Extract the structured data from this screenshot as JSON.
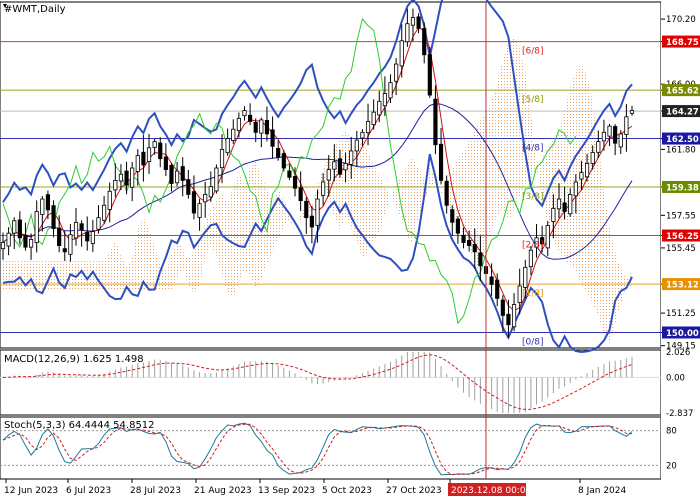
{
  "symbol_title": "#WMT,Daily",
  "chart_data": [
    {
      "type": "candlestick",
      "title": "#WMT,Daily",
      "ylim": [
        149.0,
        171.3
      ],
      "ticks": [
        "170.20",
        "168.75",
        "166.00",
        "165.62",
        "164.27",
        "162.50",
        "161.80",
        "159.38",
        "157.55",
        "156.25",
        "155.45",
        "153.12",
        "151.25",
        "150.00",
        "149.15"
      ],
      "price_labels": [
        {
          "label": "168.75",
          "value": 168.75,
          "color": "#e00000",
          "line": "#c84040"
        },
        {
          "label": "165.62",
          "value": 165.62,
          "color": "#7a8a00",
          "line": "#9aa520"
        },
        {
          "label": "164.27",
          "value": 164.27,
          "color": "#222222",
          "line": "#bbbbbb"
        },
        {
          "label": "162.50",
          "value": 162.5,
          "color": "#1a1aa0",
          "line": "#3030b0"
        },
        {
          "label": "159.38",
          "value": 159.38,
          "color": "#6a8a00",
          "line": "#9aa520"
        },
        {
          "label": "156.25",
          "value": 156.25,
          "color": "#e00000",
          "line": "#c84040"
        },
        {
          "label": "153.12",
          "value": 153.12,
          "color": "#e89000",
          "line": "#e8a030"
        },
        {
          "label": "150.00",
          "value": 150.0,
          "color": "#1a1aa0",
          "line": "#3030b0"
        }
      ],
      "level_labels": [
        {
          "label": "[6/8]",
          "value": 168.75,
          "color": "#e02020"
        },
        {
          "label": "[5/8]",
          "value": 165.62,
          "color": "#8a9a00"
        },
        {
          "label": "[4/8]",
          "value": 162.5,
          "color": "#3030b0"
        },
        {
          "label": "[3/8]",
          "value": 159.38,
          "color": "#8a9a00"
        },
        {
          "label": "[2/8]",
          "value": 156.25,
          "color": "#e02020"
        },
        {
          "label": "[1/8]",
          "value": 153.12,
          "color": "#e89000"
        },
        {
          "label": "[0/8]",
          "value": 150.0,
          "color": "#3030b0"
        }
      ],
      "crosshair_date": "2023.12.08 00:00",
      "close_series": [
        155.8,
        156.4,
        157.2,
        156.1,
        155.5,
        156.0,
        157.8,
        158.6,
        157.9,
        156.7,
        155.6,
        155.2,
        156.3,
        157.1,
        156.6,
        155.9,
        156.5,
        157.4,
        158.2,
        159.1,
        159.8,
        160.2,
        159.5,
        160.6,
        161.4,
        160.8,
        161.9,
        162.3,
        161.2,
        160.5,
        159.6,
        160.4,
        159.8,
        158.9,
        157.7,
        158.3,
        158.9,
        159.4,
        160.6,
        161.8,
        162.5,
        163.1,
        163.8,
        164.3,
        163.6,
        162.9,
        163.7,
        162.8,
        162.0,
        161.3,
        160.6,
        160.0,
        159.3,
        158.5,
        157.4,
        156.8,
        158.6,
        159.7,
        160.5,
        161.0,
        160.2,
        160.9,
        161.7,
        162.4,
        162.9,
        163.6,
        164.2,
        164.9,
        165.4,
        166.1,
        167.3,
        168.8,
        169.9,
        170.3,
        169.6,
        167.9,
        165.3,
        162.1,
        159.8,
        158.2,
        157.1,
        156.4,
        155.8,
        155.6,
        155.2,
        154.3,
        153.8,
        153.1,
        152.2,
        151.1,
        150.5,
        151.8,
        153.0,
        154.2,
        155.3,
        156.1,
        155.7,
        156.9,
        158.0,
        158.6,
        157.8,
        158.9,
        159.7,
        160.3,
        160.9,
        161.6,
        162.3,
        162.9,
        163.3,
        162.2,
        162.8,
        163.9,
        164.3
      ]
    },
    {
      "type": "bar",
      "title": "MACD(12,26,9) 1.625 1.498",
      "ticks": [
        "2.026",
        "0.00",
        "-2.837"
      ],
      "ylim": [
        -2.837,
        2.026
      ]
    },
    {
      "type": "line",
      "title": "Stoch(5,3,3) 64.4444 54.8512",
      "ticks": [
        "80",
        "20"
      ],
      "ylim": [
        0,
        100
      ],
      "levels": [
        80,
        20
      ]
    }
  ],
  "x_axis_labels": [
    "12 Jun 2023",
    "6 Jul 2023",
    "28 Jul 2023",
    "21 Aug 2023",
    "13 Sep 2023",
    "5 Oct 2023",
    "27 Oct 2023",
    "20",
    "8 Jan 2024"
  ]
}
